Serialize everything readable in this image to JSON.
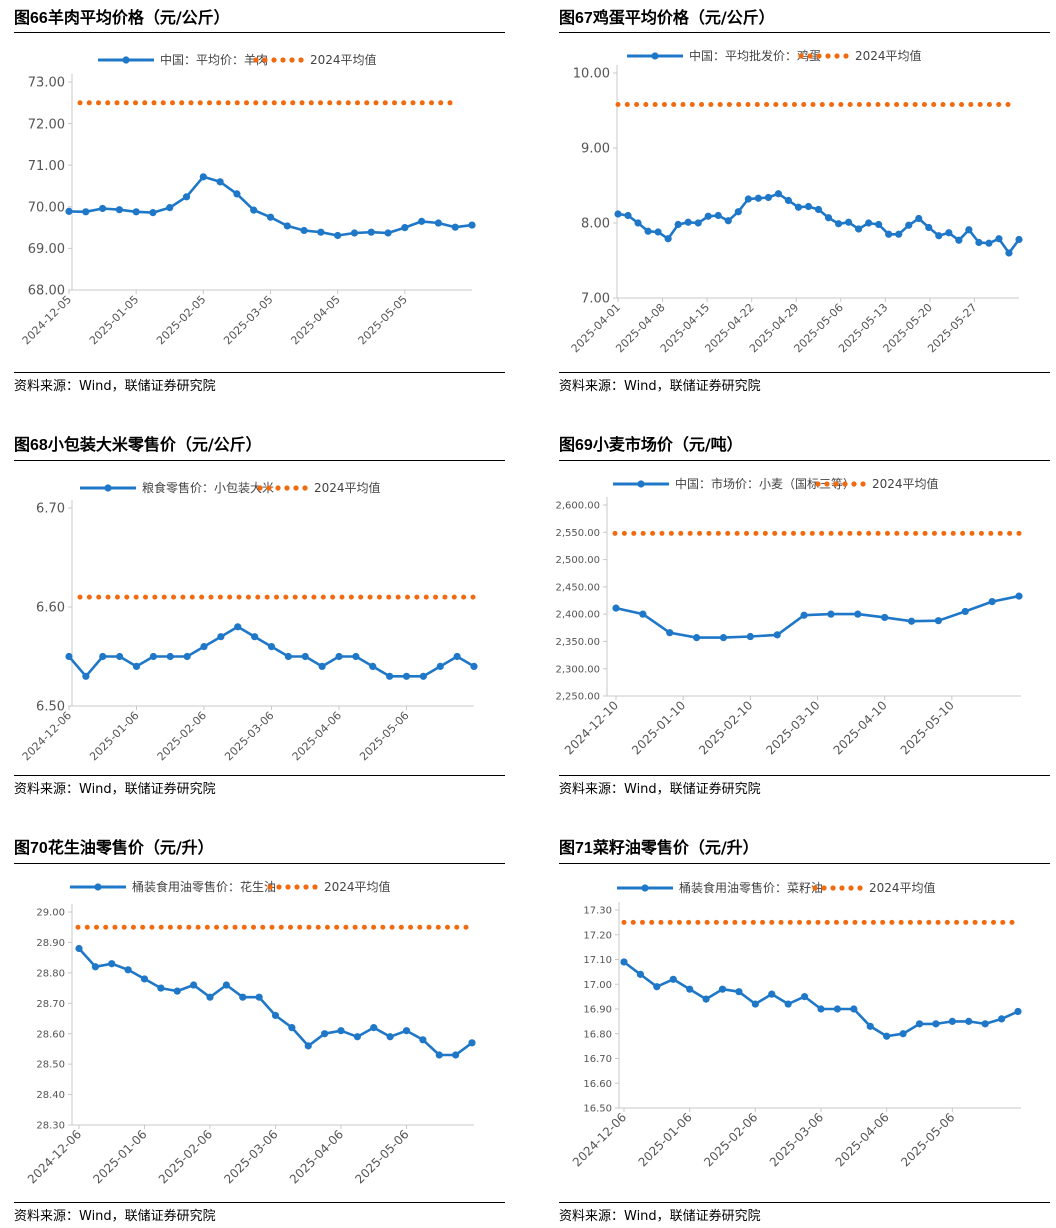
{
  "source_label": "资料来源：Wind，联储证券研究院",
  "chart_data": [
    {
      "type": "line",
      "figure": "图66",
      "title": "羊肉平均价格（元/公斤）",
      "source": "资料来源：Wind，联储证券研究院",
      "ylim": [
        68,
        73
      ],
      "y_ticks": [
        "68.00",
        "69.00",
        "70.00",
        "71.00",
        "72.00",
        "73.00"
      ],
      "x_ticks": [
        "2024-12-05",
        "2025-01-05",
        "2025-02-05",
        "2025-03-05",
        "2025-04-05",
        "2025-05-05"
      ],
      "series": [
        {
          "name": "中国：平均价：羊肉",
          "color": "#1f77c8",
          "values": [
            69.89,
            69.88,
            69.96,
            69.93,
            69.88,
            69.86,
            69.98,
            70.24,
            70.72,
            70.6,
            70.31,
            69.92,
            69.75,
            69.54,
            69.43,
            69.39,
            69.31,
            69.37,
            69.39,
            69.37,
            69.5,
            69.65,
            69.61,
            69.51,
            69.56
          ]
        },
        {
          "name": "2024平均值",
          "color": "#f26a10",
          "value": 72.5
        }
      ]
    },
    {
      "type": "line",
      "figure": "图67",
      "title": "鸡蛋平均价格（元/公斤）",
      "source": "资料来源：Wind，联储证券研究院",
      "ylim": [
        7,
        10
      ],
      "y_ticks": [
        "7.00",
        "8.00",
        "9.00",
        "10.00"
      ],
      "x_ticks": [
        "2025-04-01",
        "2025-04-08",
        "2025-04-15",
        "2025-04-22",
        "2025-04-29",
        "2025-05-06",
        "2025-05-13",
        "2025-05-20",
        "2025-05-27"
      ],
      "series": [
        {
          "name": "中国：平均批发价：鸡蛋",
          "color": "#1f77c8",
          "values": [
            8.12,
            8.1,
            8.0,
            7.89,
            7.88,
            7.79,
            7.98,
            8.01,
            8.0,
            8.09,
            8.1,
            8.03,
            8.15,
            8.32,
            8.33,
            8.34,
            8.39,
            8.3,
            8.21,
            8.22,
            8.18,
            8.07,
            7.99,
            8.01,
            7.92,
            8.0,
            7.98,
            7.85,
            7.85,
            7.97,
            8.06,
            7.94,
            7.83,
            7.87,
            7.77,
            7.91,
            7.74,
            7.73,
            7.79,
            7.6,
            7.78
          ]
        },
        {
          "name": "2024平均值",
          "color": "#f26a10",
          "value": 9.58
        }
      ]
    },
    {
      "type": "line",
      "figure": "图68",
      "title": "小包装大米零售价（元/公斤）",
      "source": "资料来源：Wind，联储证券研究院",
      "ylim": [
        6.5,
        6.7
      ],
      "y_ticks": [
        "6.50",
        "6.60",
        "6.70"
      ],
      "x_ticks": [
        "2024-12-06",
        "2025-01-06",
        "2025-02-06",
        "2025-03-06",
        "2025-04-06",
        "2025-05-06"
      ],
      "series": [
        {
          "name": "粮食零售价：小包装大米",
          "color": "#1f77c8",
          "values": [
            6.55,
            6.53,
            6.55,
            6.55,
            6.54,
            6.55,
            6.55,
            6.55,
            6.56,
            6.57,
            6.58,
            6.57,
            6.56,
            6.55,
            6.55,
            6.54,
            6.55,
            6.55,
            6.54,
            6.53,
            6.53,
            6.53,
            6.54,
            6.55,
            6.54
          ]
        },
        {
          "name": "2024平均值",
          "color": "#f26a10",
          "value": 6.61
        }
      ]
    },
    {
      "type": "line",
      "figure": "图69",
      "title": "小麦市场价（元/吨）",
      "source": "资料来源：Wind，联储证券研究院",
      "ylim": [
        2250,
        2600
      ],
      "y_ticks": [
        "2,250.00",
        "2,300.00",
        "2,350.00",
        "2,400.00",
        "2,450.00",
        "2,500.00",
        "2,550.00",
        "2,600.00"
      ],
      "x_ticks": [
        "2024-12-10",
        "2025-01-10",
        "2025-02-10",
        "2025-03-10",
        "2025-04-10",
        "2025-05-10"
      ],
      "series": [
        {
          "name": "中国：市场价：小麦（国标三等）",
          "color": "#1f77c8",
          "values": [
            2411,
            2400,
            2366,
            2357,
            2357,
            2359,
            2362,
            2398,
            2400,
            2400,
            2394,
            2387,
            2388,
            2405,
            2423,
            2433
          ]
        },
        {
          "name": "2024平均值",
          "color": "#f26a10",
          "value": 2548
        }
      ]
    },
    {
      "type": "line",
      "figure": "图70",
      "title": "花生油零售价（元/升）",
      "source": "资料来源：Wind，联储证券研究院",
      "ylim": [
        28.3,
        29.0
      ],
      "y_ticks": [
        "28.30",
        "28.40",
        "28.50",
        "28.60",
        "28.70",
        "28.80",
        "28.90",
        "29.00"
      ],
      "x_ticks": [
        "2024-12-06",
        "2025-01-06",
        "2025-02-06",
        "2025-03-06",
        "2025-04-06",
        "2025-05-06"
      ],
      "series": [
        {
          "name": "桶装食用油零售价：花生油",
          "color": "#1f77c8",
          "values": [
            28.88,
            28.82,
            28.83,
            28.81,
            28.78,
            28.75,
            28.74,
            28.76,
            28.72,
            28.76,
            28.72,
            28.72,
            28.66,
            28.62,
            28.56,
            28.6,
            28.61,
            28.59,
            28.62,
            28.59,
            28.61,
            28.58,
            28.53,
            28.53,
            28.57
          ]
        },
        {
          "name": "2024平均值",
          "color": "#f26a10",
          "value": 28.95
        }
      ]
    },
    {
      "type": "line",
      "figure": "图71",
      "title": "菜籽油零售价（元/升）",
      "source": "资料来源：Wind，联储证券研究院",
      "ylim": [
        16.5,
        17.3
      ],
      "y_ticks": [
        "16.50",
        "16.60",
        "16.70",
        "16.80",
        "16.90",
        "17.00",
        "17.10",
        "17.20",
        "17.30"
      ],
      "x_ticks": [
        "2024-12-06",
        "2025-01-06",
        "2025-02-06",
        "2025-03-06",
        "2025-04-06",
        "2025-05-06"
      ],
      "series": [
        {
          "name": "桶装食用油零售价：菜籽油",
          "color": "#1f77c8",
          "values": [
            17.09,
            17.04,
            16.99,
            17.02,
            16.98,
            16.94,
            16.98,
            16.97,
            16.92,
            16.96,
            16.92,
            16.95,
            16.9,
            16.9,
            16.9,
            16.83,
            16.79,
            16.8,
            16.84,
            16.84,
            16.85,
            16.85,
            16.84,
            16.86,
            16.89
          ]
        },
        {
          "name": "2024平均值",
          "color": "#f26a10",
          "value": 17.25
        }
      ]
    }
  ]
}
